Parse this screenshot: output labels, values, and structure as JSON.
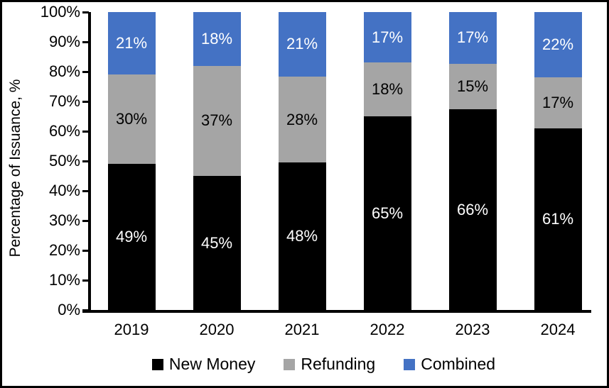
{
  "chart_data": {
    "type": "bar",
    "stacked": true,
    "orientation": "vertical",
    "title": "",
    "xlabel": "",
    "ylabel": "Percentage of Issuance, %",
    "ylim": [
      0,
      100
    ],
    "ytick_step": 10,
    "ytick_labels": [
      "0%",
      "10%",
      "20%",
      "30%",
      "40%",
      "50%",
      "60%",
      "70%",
      "80%",
      "90%",
      "100%"
    ],
    "grid": false,
    "legend_position": "bottom",
    "categories": [
      "2019",
      "2020",
      "2021",
      "2022",
      "2023",
      "2024"
    ],
    "series": [
      {
        "name": "New Money",
        "color": "#000000",
        "label_color": "#FFFFFF",
        "values": [
          49,
          45,
          48,
          65,
          66,
          61
        ],
        "labels": [
          "49%",
          "45%",
          "48%",
          "65%",
          "66%",
          "61%"
        ]
      },
      {
        "name": "Refunding",
        "color": "#A5A5A5",
        "label_color": "#000000",
        "values": [
          30,
          37,
          28,
          18,
          15,
          17
        ],
        "labels": [
          "30%",
          "37%",
          "28%",
          "18%",
          "15%",
          "17%"
        ]
      },
      {
        "name": "Combined",
        "color": "#4472C4",
        "label_color": "#FFFFFF",
        "values": [
          21,
          18,
          21,
          17,
          17,
          22
        ],
        "labels": [
          "21%",
          "18%",
          "21%",
          "17%",
          "17%",
          "22%"
        ]
      }
    ]
  },
  "frame": {
    "background": "#FFFFFF",
    "border_color": "#000000"
  }
}
